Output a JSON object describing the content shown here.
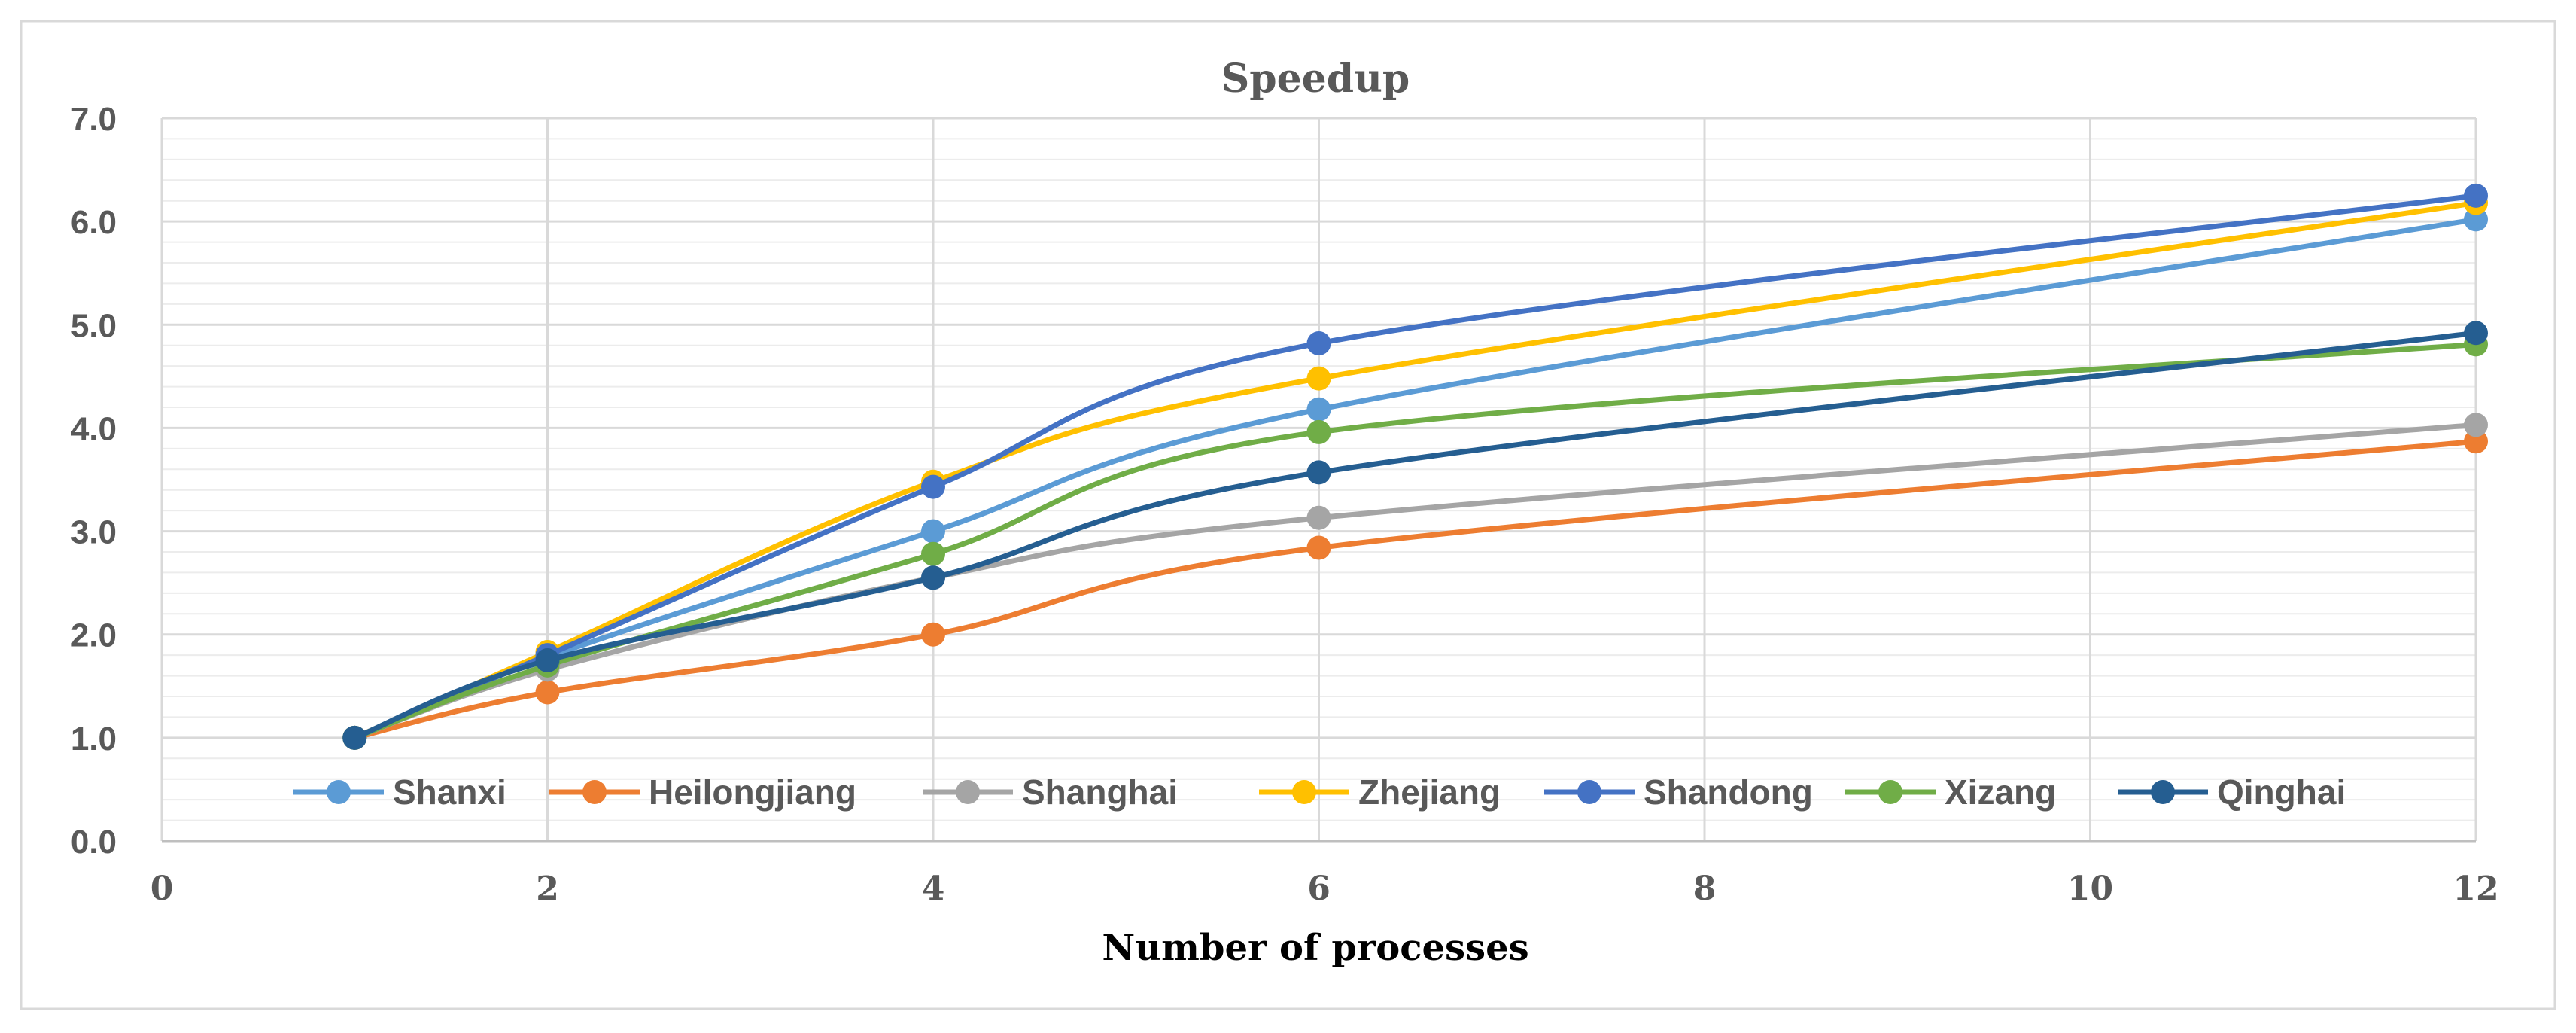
{
  "chart_data": {
    "type": "line",
    "title": "Speedup",
    "xlabel": "Number of processes",
    "ylabel": "",
    "xlim": [
      0,
      12
    ],
    "ylim": [
      0,
      7
    ],
    "x_ticks": [
      "0",
      "2",
      "4",
      "6",
      "8",
      "10",
      "12"
    ],
    "y_ticks": [
      "0.0",
      "1.0",
      "2.0",
      "3.0",
      "4.0",
      "5.0",
      "6.0",
      "7.0"
    ],
    "grid": true,
    "legend_position": "bottom-inside",
    "x": [
      1,
      2,
      4,
      6,
      12
    ],
    "series": [
      {
        "name": "Shanxi",
        "color": "#5B9BD5",
        "values": [
          1.0,
          1.78,
          3.0,
          4.18,
          6.02
        ]
      },
      {
        "name": "Heilongjiang",
        "color": "#ED7D31",
        "values": [
          1.0,
          1.44,
          2.0,
          2.84,
          3.87
        ]
      },
      {
        "name": "Shanghai",
        "color": "#A5A5A5",
        "values": [
          1.0,
          1.66,
          2.55,
          3.13,
          4.03
        ]
      },
      {
        "name": "Zhejiang",
        "color": "#FFC000",
        "values": [
          1.0,
          1.83,
          3.48,
          4.48,
          6.18
        ]
      },
      {
        "name": "Shandong",
        "color": "#4472C4",
        "values": [
          1.0,
          1.8,
          3.43,
          4.82,
          6.25
        ]
      },
      {
        "name": "Xizang",
        "color": "#70AD47",
        "values": [
          1.0,
          1.7,
          2.78,
          3.96,
          4.81
        ]
      },
      {
        "name": "Qinghai",
        "color": "#255E91",
        "values": [
          1.0,
          1.75,
          2.55,
          3.57,
          4.92
        ]
      }
    ]
  }
}
